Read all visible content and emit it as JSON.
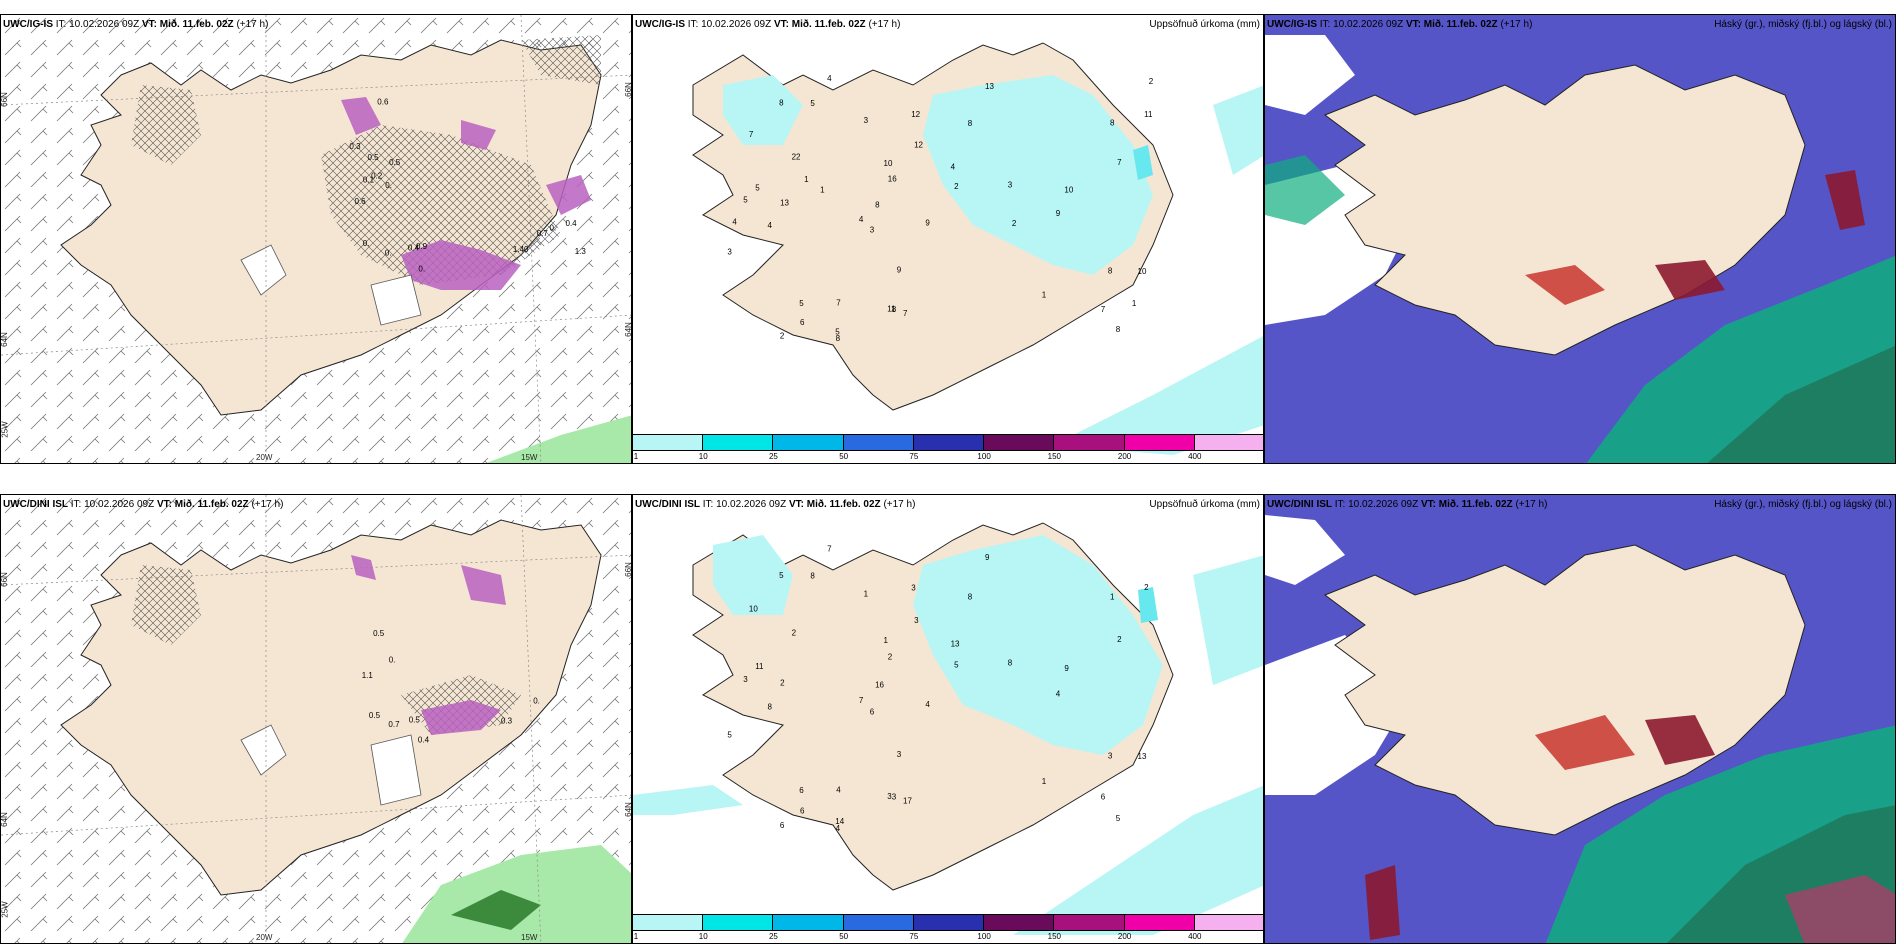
{
  "colors": {
    "land": "#f5e6d3",
    "sea": "#ffffff",
    "precip_light": "#b8f5f5",
    "precip_mid": "#66e8ee",
    "icing_purple": "#b860c0",
    "low_cloud": "#0fae7e",
    "mid_cloud": "#5555c8",
    "high_cloud": "#c8352d",
    "fog_green": "#a8e8a8"
  },
  "rows": [
    {
      "wind": {
        "model": "UWC/IG-IS",
        "it": "IT: 10.02.2026 09Z",
        "vt": "VT: Mið. 11.feb. 02Z",
        "lead": "(+17 h)",
        "lat_labels": [
          "66N",
          "64N",
          "25W",
          "66N",
          "64N"
        ],
        "lon_labels": [
          "20W",
          "15W"
        ],
        "icing_labels": [
          "0.",
          "0.",
          "0.",
          "1.40",
          "0.",
          "0.4",
          "0.",
          "0.6",
          "0.5",
          "0.3",
          "0.6",
          "1.3",
          "0.5",
          "0.7",
          "0.1",
          "0.2",
          "0.9",
          "0.4"
        ]
      },
      "precip": {
        "model": "UWC/IG-IS",
        "it": "IT: 10.02.2026 09Z",
        "vt": "VT: Mið. 11.feb. 02Z",
        "lead": "(+17 h)",
        "title": "Uppsöfnuð úrkoma (mm)",
        "values": [
          "1",
          "16",
          "8",
          "5",
          "8",
          "7",
          "3",
          "11",
          "13",
          "10",
          "7",
          "8",
          "4",
          "4",
          "2",
          "5",
          "9",
          "8",
          "4",
          "7",
          "10",
          "8",
          "7",
          "5",
          "5",
          "7",
          "8",
          "22",
          "9",
          "13",
          "11",
          "12",
          "4",
          "8",
          "5",
          "3",
          "2",
          "9",
          "3",
          "3",
          "10",
          "8",
          "6",
          "12",
          "2",
          "4",
          "1",
          "2",
          "1",
          "1"
        ]
      },
      "cloud": {
        "model": "UWC/IG-IS",
        "it": "IT: 10.02.2026 09Z",
        "vt": "VT: Mið. 11.feb. 02Z",
        "lead": "(+17 h)",
        "title": "Háský (gr.), miðský (fj.bl.) og lágský (bl.)"
      }
    },
    {
      "wind": {
        "model": "UWC/DINI ISL",
        "it": "IT: 10.02.2026 09Z",
        "vt": "VT: Mið. 11.feb. 02Z",
        "lead": "(+17 h)",
        "lat_labels": [
          "66N",
          "64N",
          "25W",
          "66N",
          "64N"
        ],
        "lon_labels": [
          "20W",
          "15W"
        ],
        "icing_labels": [
          "0.",
          "0.",
          "0.5",
          "0.3",
          "0.7",
          "0.5",
          "0.4",
          "1.1",
          "0.5"
        ]
      },
      "precip": {
        "model": "UWC/DINI ISL",
        "it": "IT: 10.02.2026 09Z",
        "vt": "VT: Mið. 11.feb. 02Z",
        "lead": "(+17 h)",
        "title": "Uppsöfnuð úrkoma (mm)",
        "values": [
          "1",
          "2",
          "5",
          "3",
          "5",
          "2",
          "5",
          "2",
          "2",
          "13",
          "4",
          "3",
          "7",
          "7",
          "5",
          "6",
          "4",
          "3",
          "8",
          "10",
          "9",
          "16",
          "17",
          "11",
          "14",
          "6",
          "8",
          "2",
          "4",
          "9",
          "3",
          "3",
          "13",
          "4",
          "8",
          "8",
          "6",
          "3",
          "6",
          "1",
          "1",
          "1",
          "6",
          "3"
        ]
      },
      "cloud": {
        "model": "UWC/DINI ISL",
        "it": "IT: 10.02.2026 09Z",
        "vt": "VT: Mið. 11.feb. 02Z",
        "lead": "(+17 h)",
        "title": "Háský (gr.), miðský (fj.bl.) og lágský (bl.)"
      }
    }
  ],
  "colorbar": {
    "ticks": [
      "1",
      "10",
      "25",
      "50",
      "75",
      "100",
      "150",
      "200",
      "400"
    ],
    "colors": [
      "#b8f5f5",
      "#00e5e5",
      "#00b8e8",
      "#2a6ae0",
      "#2830b0",
      "#6a0a5a",
      "#a8107e",
      "#f000a8",
      "#f5b0f0"
    ]
  }
}
